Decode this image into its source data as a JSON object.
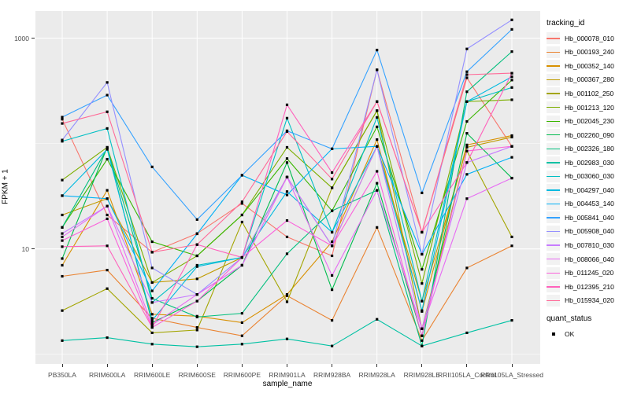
{
  "figure": {
    "background": "#FFFFFF",
    "panel_background": "#EBEBEB",
    "grid_color": "#FFFFFF",
    "tick_color": "#333333",
    "tick_label_color": "#4D4D4D",
    "point_color": "#000000"
  },
  "axes": {
    "x_title": "sample_name",
    "y_title": "FPKM + 1",
    "y_scale": "log10",
    "y_ticks": [
      {
        "label": "1000",
        "value": 1000
      },
      {
        "label": "10",
        "value": 10
      }
    ],
    "y_minor_gridlines": [
      100,
      1
    ]
  },
  "legend": {
    "tracking_title": "tracking_id",
    "quant_title": "quant_status",
    "quant_items": [
      {
        "label": "OK",
        "shape": "square",
        "color": "#000000"
      }
    ]
  },
  "chart_data": {
    "type": "line",
    "title": "",
    "xlabel": "sample_name",
    "ylabel": "FPKM + 1",
    "y_scale": "log10",
    "ylim": [
      0.8,
      1800
    ],
    "grid": true,
    "legend_position": "right",
    "point_shape": "small black square (quant_status OK)",
    "categories": [
      "PB350LA",
      "RRIM600LA",
      "RRIM600LE",
      "RRIM600SE",
      "RRIM600PE",
      "RRIM901LA",
      "RRIM928BA",
      "RRIM928LA",
      "RRIM928LE",
      "RRII105LA_Control",
      "RRII105LA_Stressed"
    ],
    "series": [
      {
        "name": "Hb_000078_010",
        "color": "#F8766D",
        "values": [
          170,
          21,
          9.3,
          14,
          27,
          13,
          8.6,
          500,
          14.4,
          420,
          94
        ]
      },
      {
        "name": "Hb_000193_240",
        "color": "#EA8331",
        "values": [
          5.5,
          6.3,
          2.2,
          1.8,
          1.5,
          3.6,
          2.1,
          16,
          1.35,
          6.6,
          10.7
        ]
      },
      {
        "name": "Hb_000352_140",
        "color": "#D89000",
        "values": [
          7,
          36,
          2.4,
          2.3,
          2.0,
          3.7,
          11.7,
          109,
          2.55,
          97,
          119
        ]
      },
      {
        "name": "Hb_000367_280",
        "color": "#C09B00",
        "values": [
          21,
          30,
          4.8,
          5.2,
          8.3,
          48,
          10.7,
          94,
          3.2,
          92,
          115
        ]
      },
      {
        "name": "Hb_001102_250",
        "color": "#A3A500",
        "values": [
          2.6,
          4.2,
          1.6,
          1.7,
          18,
          3.15,
          38,
          205,
          1.75,
          85,
          13
        ]
      },
      {
        "name": "Hb_001213_120",
        "color": "#7CAE00",
        "values": [
          45,
          92,
          4.8,
          8.6,
          21,
          92,
          38,
          205,
          4.7,
          250,
          260
        ]
      },
      {
        "name": "Hb_002045_230",
        "color": "#39B600",
        "values": [
          16,
          71,
          11.7,
          8.6,
          21,
          72,
          23,
          144,
          6.4,
          162,
          400
        ]
      },
      {
        "name": "Hb_002260_090",
        "color": "#00BB4E",
        "values": [
          8.1,
          92,
          2.0,
          3.2,
          7,
          66,
          4.1,
          42,
          1.5,
          125,
          47
        ]
      },
      {
        "name": "Hb_002326_180",
        "color": "#00BF7D",
        "values": [
          16,
          90,
          3.4,
          2.26,
          2.45,
          9,
          23,
          36,
          1.2,
          310,
          745
        ]
      },
      {
        "name": "Hb_002983_030",
        "color": "#00C1A3",
        "values": [
          1.35,
          1.44,
          1.25,
          1.18,
          1.25,
          1.4,
          1.2,
          2.15,
          1.2,
          1.6,
          2.1
        ]
      },
      {
        "name": "Hb_003060_030",
        "color": "#00BFC4",
        "values": [
          105,
          139,
          3.1,
          7,
          8.3,
          174,
          14.4,
          177,
          3.2,
          250,
          340
        ]
      },
      {
        "name": "Hb_004297_040",
        "color": "#00BAE0",
        "values": [
          32,
          88,
          2.1,
          6.8,
          8.3,
          35,
          14.4,
          94,
          2.6,
          250,
          430
        ]
      },
      {
        "name": "Hb_004453_140",
        "color": "#00B0F6",
        "values": [
          32,
          30,
          4.0,
          13.9,
          50,
          32.5,
          89,
          94,
          8.9,
          51,
          74
        ]
      },
      {
        "name": "Hb_005841_040",
        "color": "#35A2FF",
        "values": [
          178,
          288,
          60,
          19,
          50,
          132,
          89,
          771,
          34,
          480,
          1210
        ]
      },
      {
        "name": "Hb_005908_040",
        "color": "#9590FF",
        "values": [
          108,
          380,
          6.6,
          3.7,
          8.3,
          48,
          10.7,
          500,
          8.9,
          790,
          1490
        ]
      },
      {
        "name": "Hb_007810_030",
        "color": "#C77CFF",
        "values": [
          14,
          25.5,
          3.1,
          3.7,
          7,
          48,
          10.7,
          94,
          1.75,
          66,
          94
        ]
      },
      {
        "name": "Hb_008066_040",
        "color": "#E76BF3",
        "values": [
          13,
          25.5,
          1.9,
          3.7,
          7,
          48,
          5.6,
          36,
          1.75,
          30,
          47
        ]
      },
      {
        "name": "Hb_011245_020",
        "color": "#FA62DB",
        "values": [
          12,
          19.3,
          1.8,
          3.2,
          8.3,
          18.6,
          10.7,
          54.5,
          1.5,
          85,
          94
        ]
      },
      {
        "name": "Hb_012395_210",
        "color": "#FF62BC",
        "values": [
          10.5,
          10.7,
          1.8,
          11,
          8.3,
          233,
          53,
          250,
          14.4,
          66,
          465
        ]
      },
      {
        "name": "Hb_015934_020",
        "color": "#FF6A98",
        "values": [
          155,
          200,
          9.3,
          11,
          28,
          130,
          46,
          250,
          14.4,
          450,
          465
        ]
      }
    ]
  }
}
